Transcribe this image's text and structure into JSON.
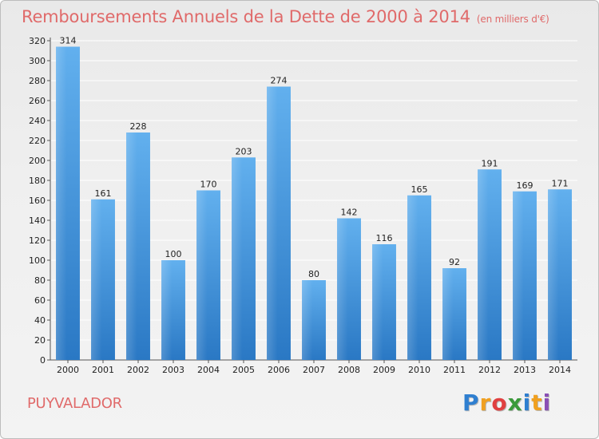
{
  "chart_data": {
    "type": "bar",
    "title": "Remboursements Annuels de la Dette de 2000 à 2014",
    "unit": "(en milliers d'€)",
    "categories": [
      "2000",
      "2001",
      "2002",
      "2003",
      "2004",
      "2005",
      "2006",
      "2007",
      "2008",
      "2009",
      "2010",
      "2011",
      "2012",
      "2013",
      "2014"
    ],
    "values": [
      314,
      161,
      228,
      100,
      170,
      203,
      274,
      80,
      142,
      116,
      165,
      92,
      191,
      169,
      171
    ],
    "ylim": [
      0,
      320
    ],
    "yticks": [
      0,
      20,
      40,
      60,
      80,
      100,
      120,
      140,
      160,
      180,
      200,
      220,
      240,
      260,
      280,
      300,
      320
    ],
    "grid": true,
    "bar_color": "#3a8fd8"
  },
  "commune": "PUYVALADOR",
  "logo": {
    "letters": [
      "P",
      "r",
      "o",
      "x",
      "i",
      "t",
      "i"
    ],
    "colors": [
      "#2f7fd0",
      "#f0a020",
      "#e04040",
      "#3a9a3a",
      "#2f7fd0",
      "#f0a020",
      "#8a4fb5"
    ]
  }
}
